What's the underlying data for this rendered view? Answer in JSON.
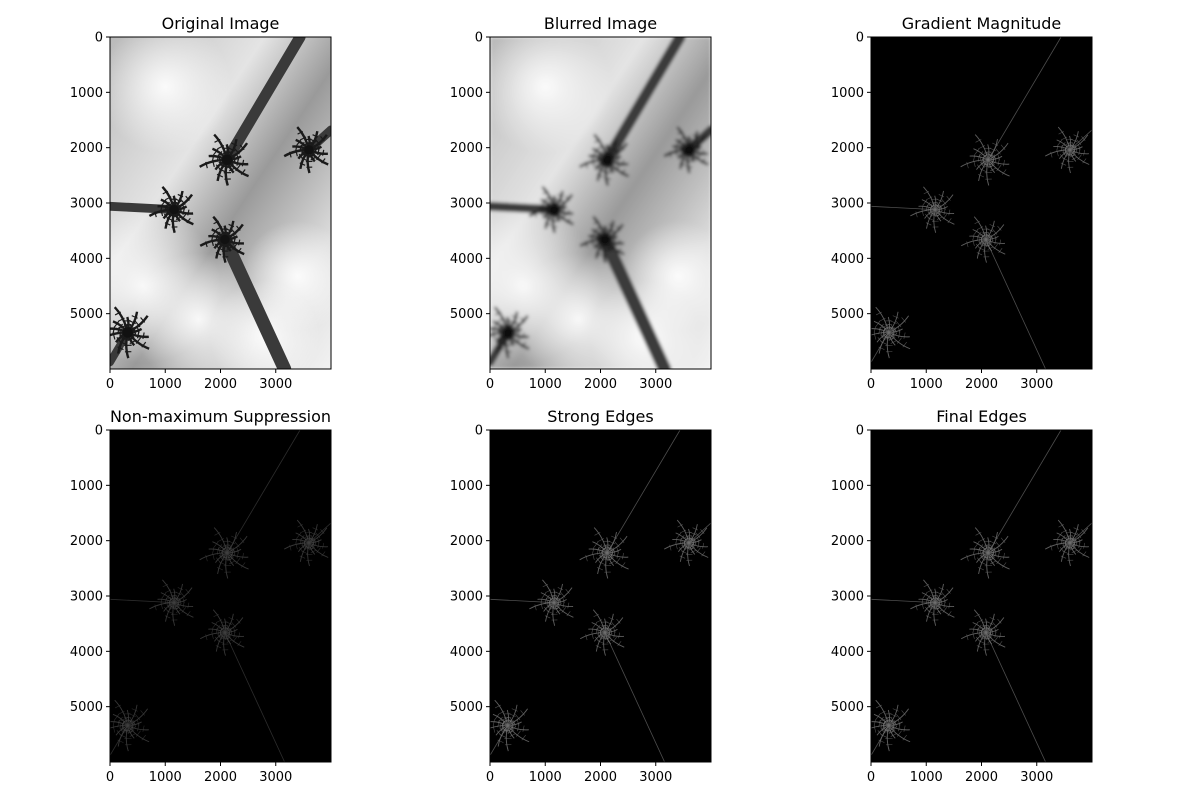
{
  "chart_data": [
    {
      "type": "image",
      "title": "Original Image",
      "content": "palm-trees-grayscale",
      "xlim": [
        0,
        4000
      ],
      "ylim": [
        6000,
        0
      ],
      "xticks": [
        0,
        1000,
        2000,
        3000
      ],
      "yticks": [
        0,
        1000,
        2000,
        3000,
        4000,
        5000
      ]
    },
    {
      "type": "image",
      "title": "Blurred Image",
      "content": "palm-trees-blurred",
      "xlim": [
        0,
        4000
      ],
      "ylim": [
        6000,
        0
      ],
      "xticks": [
        0,
        1000,
        2000,
        3000
      ],
      "yticks": [
        0,
        1000,
        2000,
        3000,
        4000,
        5000
      ]
    },
    {
      "type": "image",
      "title": "Gradient Magnitude",
      "content": "edge-map",
      "xlim": [
        0,
        4000
      ],
      "ylim": [
        6000,
        0
      ],
      "xticks": [
        0,
        1000,
        2000,
        3000
      ],
      "yticks": [
        0,
        1000,
        2000,
        3000,
        4000,
        5000
      ]
    },
    {
      "type": "image",
      "title": "Non-maximum Suppression",
      "content": "edge-map-dim",
      "xlim": [
        0,
        4000
      ],
      "ylim": [
        6000,
        0
      ],
      "xticks": [
        0,
        1000,
        2000,
        3000
      ],
      "yticks": [
        0,
        1000,
        2000,
        3000,
        4000,
        5000
      ]
    },
    {
      "type": "image",
      "title": "Strong Edges",
      "content": "edge-map",
      "xlim": [
        0,
        4000
      ],
      "ylim": [
        6000,
        0
      ],
      "xticks": [
        0,
        1000,
        2000,
        3000
      ],
      "yticks": [
        0,
        1000,
        2000,
        3000,
        4000,
        5000
      ]
    },
    {
      "type": "image",
      "title": "Final Edges",
      "content": "edge-map",
      "xlim": [
        0,
        4000
      ],
      "ylim": [
        6000,
        0
      ],
      "xticks": [
        0,
        1000,
        2000,
        3000
      ],
      "yticks": [
        0,
        1000,
        2000,
        3000,
        4000,
        5000
      ]
    }
  ]
}
